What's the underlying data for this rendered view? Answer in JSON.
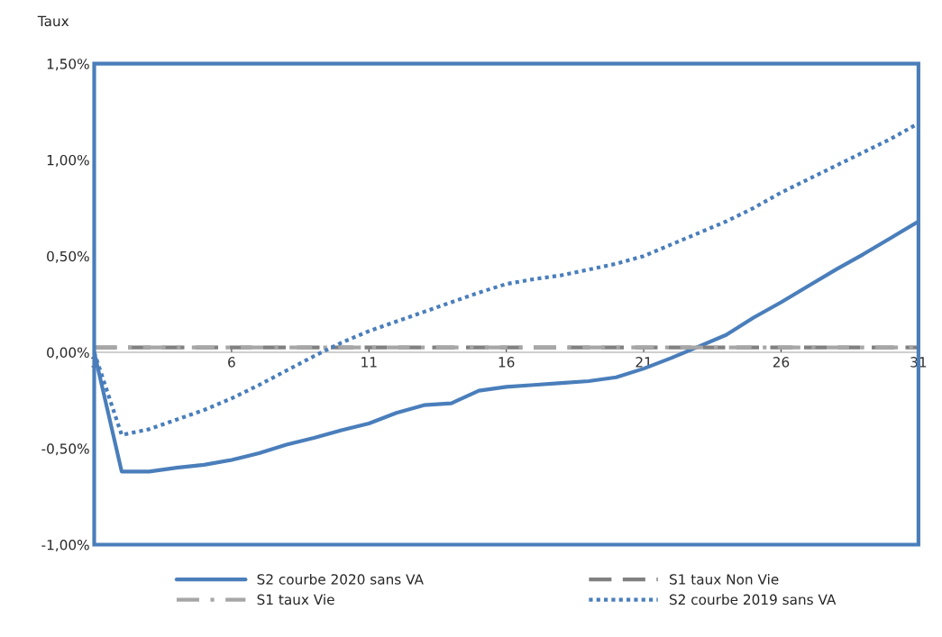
{
  "chart_data": {
    "type": "line",
    "ylabel": "Taux",
    "x": [
      1,
      2,
      3,
      4,
      5,
      6,
      7,
      8,
      9,
      10,
      11,
      12,
      13,
      14,
      15,
      16,
      17,
      18,
      19,
      20,
      21,
      22,
      23,
      24,
      25,
      26,
      27,
      28,
      29,
      30,
      31
    ],
    "xlim": [
      1,
      31
    ],
    "xticks": [
      1,
      6,
      11,
      16,
      21,
      26,
      31
    ],
    "ylim": [
      -1.0,
      1.5
    ],
    "yticks": [
      {
        "value": -1.0,
        "label": "-1,00%"
      },
      {
        "value": -0.5,
        "label": "-0,50%"
      },
      {
        "value": 0,
        "label": "0,00%"
      },
      {
        "value": 0.5,
        "label": "0,50%"
      },
      {
        "value": 1.0,
        "label": "1,00%"
      },
      {
        "value": 1.5,
        "label": "1,50%"
      }
    ],
    "grid": false,
    "legend": "bottom",
    "marker": "none",
    "series": [
      {
        "name": "S2 courbe 2020 sans VA",
        "color": "#4a7ebb",
        "line_style": "solid",
        "values": [
          0,
          -0.62,
          -0.62,
          -0.6,
          -0.585,
          -0.56,
          -0.525,
          -0.48,
          -0.445,
          -0.405,
          -0.37,
          -0.315,
          -0.275,
          -0.265,
          -0.2,
          -0.18,
          -0.17,
          -0.16,
          -0.15,
          -0.13,
          -0.085,
          -0.03,
          0.03,
          0.09,
          0.18,
          0.26,
          0.345,
          0.43,
          0.51,
          0.595,
          0.68
        ]
      },
      {
        "name": "S1 taux Non Vie",
        "color": "#808080",
        "line_style": "dashed",
        "values": [
          0.025,
          0.025,
          0.025,
          0.025,
          0.025,
          0.025,
          0.025,
          0.025,
          0.025,
          0.025,
          0.025,
          0.025,
          0.025,
          0.025,
          0.025,
          0.025,
          0.025,
          0.025,
          0.025,
          0.025,
          0.025,
          0.025,
          0.025,
          0.025,
          0.025,
          0.025,
          0.025,
          0.025,
          0.025,
          0.025,
          0.025
        ]
      },
      {
        "name": "S1 taux Vie",
        "color": "#a6a6a6",
        "line_style": "dashdot",
        "values": [
          0.025,
          0.025,
          0.025,
          0.025,
          0.025,
          0.025,
          0.025,
          0.025,
          0.025,
          0.025,
          0.025,
          0.025,
          0.025,
          0.025,
          0.025,
          0.025,
          0.025,
          0.025,
          0.025,
          0.025,
          0.025,
          0.025,
          0.025,
          0.025,
          0.025,
          0.025,
          0.025,
          0.025,
          0.025,
          0.025,
          0.025
        ]
      },
      {
        "name": "S2 courbe 2019 sans VA",
        "color": "#4a7ebb",
        "line_style": "dotted",
        "values": [
          0,
          -0.43,
          -0.4,
          -0.35,
          -0.3,
          -0.24,
          -0.17,
          -0.095,
          -0.02,
          0.05,
          0.11,
          0.16,
          0.21,
          0.26,
          0.31,
          0.355,
          0.38,
          0.4,
          0.43,
          0.46,
          0.5,
          0.56,
          0.62,
          0.68,
          0.75,
          0.83,
          0.9,
          0.97,
          1.04,
          1.11,
          1.19
        ]
      }
    ]
  }
}
